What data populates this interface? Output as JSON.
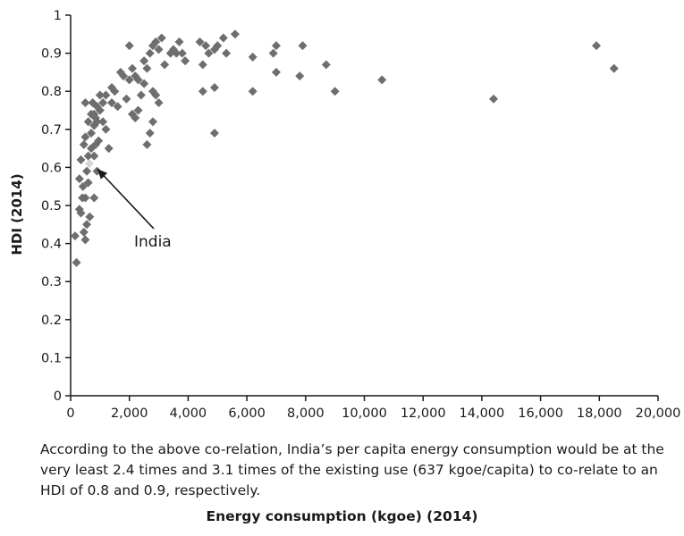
{
  "chart_data": {
    "type": "scatter",
    "xlabel": "Energy consumption (kgoe) (2014)",
    "ylabel": "HDI (2014)",
    "xlim": [
      0,
      20000
    ],
    "ylim": [
      0,
      1
    ],
    "x_ticks": [
      0,
      2000,
      4000,
      6000,
      8000,
      10000,
      12000,
      14000,
      16000,
      18000,
      20000
    ],
    "x_tick_labels": [
      "0",
      "2,000",
      "4,000",
      "6,000",
      "8,000",
      "10,000",
      "12,000",
      "14,000",
      "16,000",
      "18,000",
      "20,000"
    ],
    "y_ticks": [
      0,
      0.1,
      0.2,
      0.3,
      0.4,
      0.5,
      0.6,
      0.7,
      0.8,
      0.9,
      1
    ],
    "y_tick_labels": [
      "0",
      "0.1",
      "0.2",
      "0.3",
      "0.4",
      "0.5",
      "0.6",
      "0.7",
      "0.8",
      "0.9",
      "1"
    ],
    "grid": false,
    "legend": "none",
    "marker": "diamond",
    "point_color": "#6e6e6e",
    "highlight_color": "#d6d6d6",
    "annotation": {
      "text": "India",
      "x": 637,
      "y": 0.61
    },
    "points": [
      [
        200,
        0.35
      ],
      [
        150,
        0.42
      ],
      [
        300,
        0.49
      ],
      [
        350,
        0.48
      ],
      [
        400,
        0.52
      ],
      [
        420,
        0.55
      ],
      [
        300,
        0.57
      ],
      [
        350,
        0.62
      ],
      [
        450,
        0.43
      ],
      [
        500,
        0.41
      ],
      [
        550,
        0.45
      ],
      [
        500,
        0.52
      ],
      [
        550,
        0.59
      ],
      [
        600,
        0.56
      ],
      [
        650,
        0.47
      ],
      [
        600,
        0.63
      ],
      [
        700,
        0.65
      ],
      [
        450,
        0.66
      ],
      [
        500,
        0.68
      ],
      [
        600,
        0.72
      ],
      [
        500,
        0.77
      ],
      [
        700,
        0.69
      ],
      [
        800,
        0.71
      ],
      [
        850,
        0.66
      ],
      [
        900,
        0.72
      ],
      [
        800,
        0.74
      ],
      [
        900,
        0.76
      ],
      [
        750,
        0.77
      ],
      [
        850,
        0.73
      ],
      [
        700,
        0.74
      ],
      [
        1000,
        0.75
      ],
      [
        1100,
        0.77
      ],
      [
        1200,
        0.79
      ],
      [
        1000,
        0.79
      ],
      [
        1100,
        0.72
      ],
      [
        950,
        0.67
      ],
      [
        800,
        0.63
      ],
      [
        900,
        0.59
      ],
      [
        800,
        0.52
      ],
      [
        1200,
        0.7
      ],
      [
        1300,
        0.65
      ],
      [
        1400,
        0.77
      ],
      [
        1500,
        0.8
      ],
      [
        1400,
        0.81
      ],
      [
        1600,
        0.76
      ],
      [
        1700,
        0.85
      ],
      [
        1800,
        0.84
      ],
      [
        1900,
        0.78
      ],
      [
        2000,
        0.83
      ],
      [
        2000,
        0.92
      ],
      [
        2100,
        0.86
      ],
      [
        2200,
        0.84
      ],
      [
        2300,
        0.83
      ],
      [
        2100,
        0.74
      ],
      [
        2200,
        0.73
      ],
      [
        2300,
        0.75
      ],
      [
        2400,
        0.79
      ],
      [
        2500,
        0.82
      ],
      [
        2600,
        0.86
      ],
      [
        2500,
        0.88
      ],
      [
        2700,
        0.9
      ],
      [
        2800,
        0.92
      ],
      [
        2900,
        0.93
      ],
      [
        3000,
        0.91
      ],
      [
        3100,
        0.94
      ],
      [
        2800,
        0.8
      ],
      [
        2900,
        0.79
      ],
      [
        3000,
        0.77
      ],
      [
        2800,
        0.72
      ],
      [
        2700,
        0.69
      ],
      [
        2600,
        0.66
      ],
      [
        3200,
        0.87
      ],
      [
        3400,
        0.9
      ],
      [
        3500,
        0.91
      ],
      [
        3700,
        0.93
      ],
      [
        3800,
        0.9
      ],
      [
        3900,
        0.88
      ],
      [
        3600,
        0.9
      ],
      [
        4400,
        0.93
      ],
      [
        4600,
        0.92
      ],
      [
        4700,
        0.9
      ],
      [
        4500,
        0.87
      ],
      [
        4900,
        0.91
      ],
      [
        5000,
        0.92
      ],
      [
        5200,
        0.94
      ],
      [
        5600,
        0.95
      ],
      [
        5300,
        0.9
      ],
      [
        4500,
        0.8
      ],
      [
        4900,
        0.81
      ],
      [
        4900,
        0.69
      ],
      [
        6200,
        0.8
      ],
      [
        6200,
        0.89
      ],
      [
        6900,
        0.9
      ],
      [
        7000,
        0.92
      ],
      [
        7000,
        0.85
      ],
      [
        7800,
        0.84
      ],
      [
        7900,
        0.92
      ],
      [
        8700,
        0.87
      ],
      [
        9000,
        0.8
      ],
      [
        10600,
        0.83
      ],
      [
        14400,
        0.78
      ],
      [
        17900,
        0.92
      ],
      [
        18500,
        0.86
      ]
    ]
  },
  "caption": "According to the above co-relation, India’s per capita energy consumption would be at the very least 2.4 times and 3.1 times of the existing use (637 kgoe/capita) to co-relate to an HDI of 0.8 and 0.9, respectively."
}
